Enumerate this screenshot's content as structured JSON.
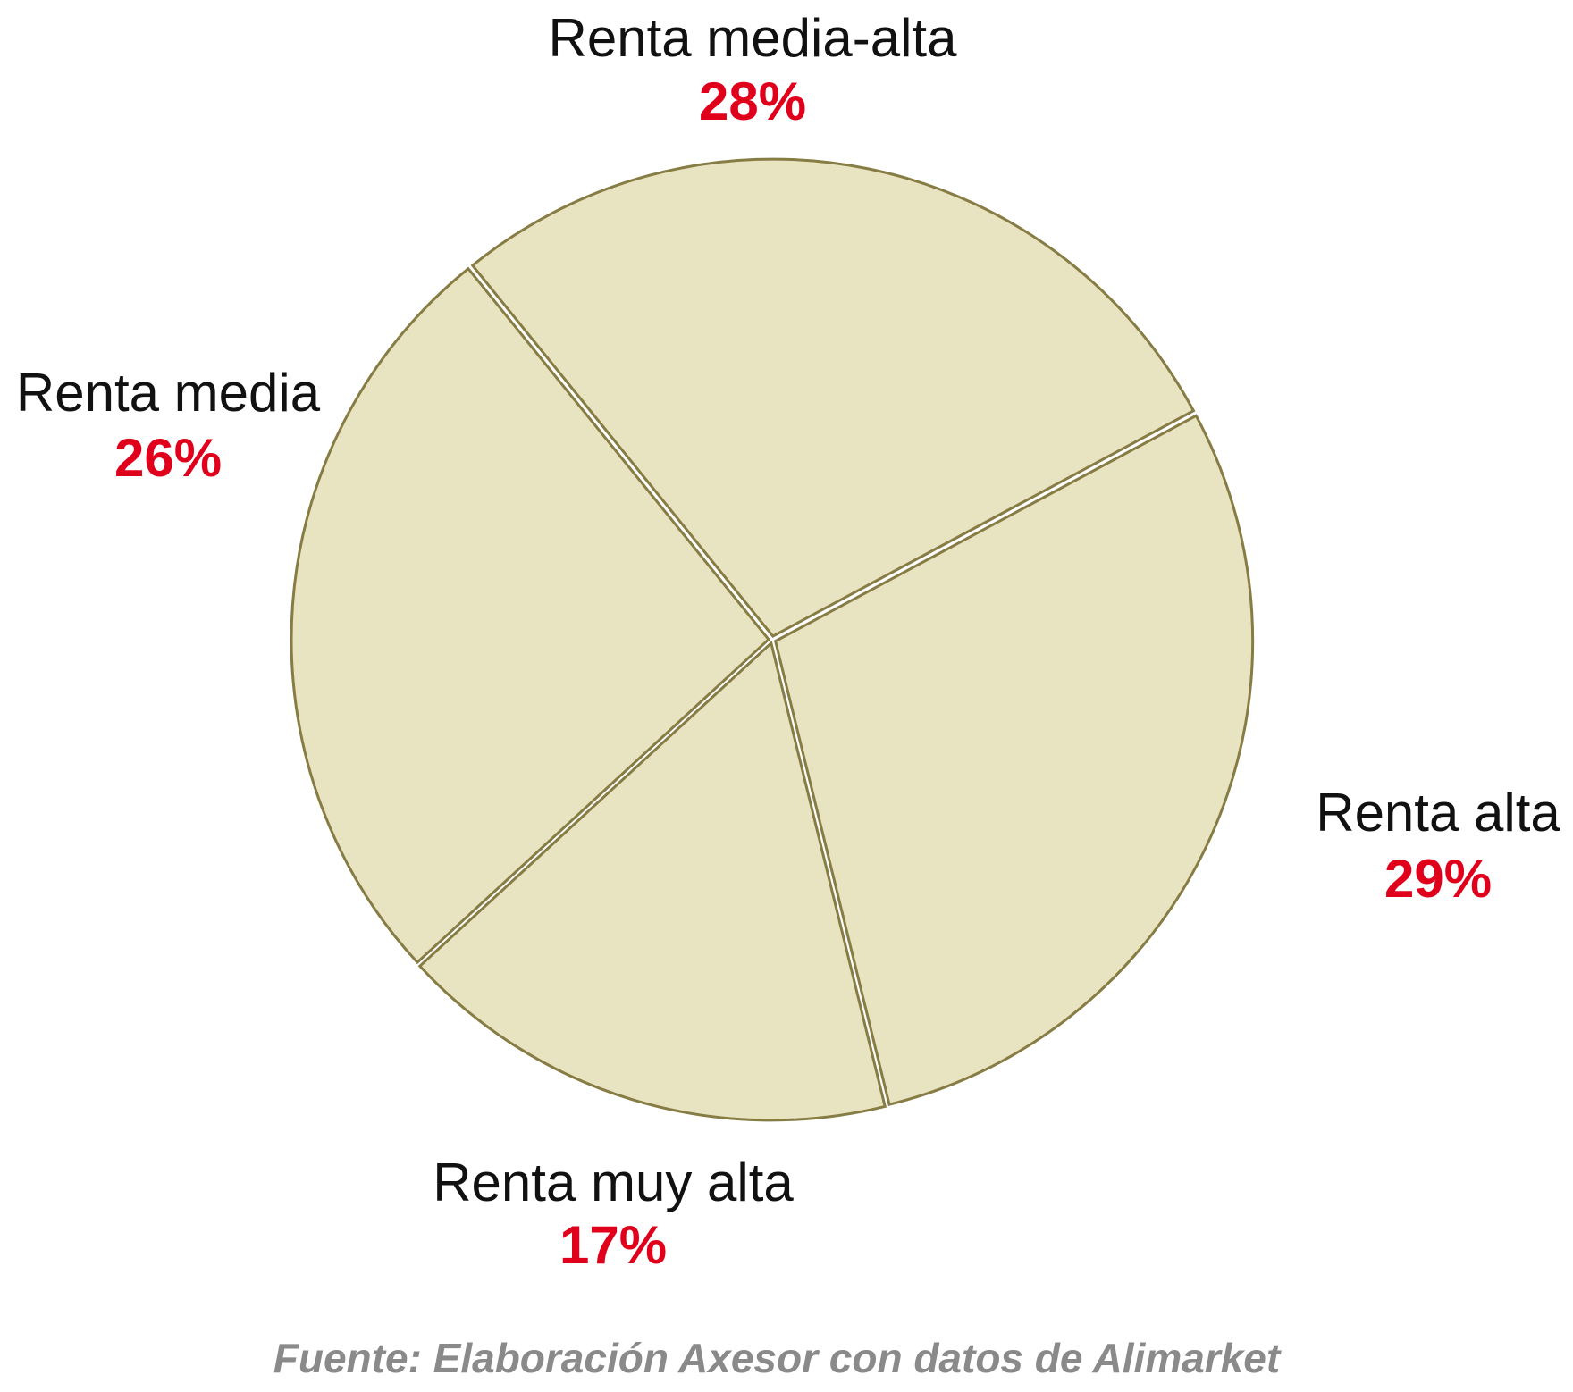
{
  "chart_data": {
    "type": "pie",
    "categories": [
      "Renta media-alta",
      "Renta alta",
      "Renta muy alta",
      "Renta media"
    ],
    "values": [
      28,
      29,
      17,
      26
    ],
    "value_labels": [
      "28%",
      "29%",
      "17%",
      "26%"
    ],
    "color": "#e8e3c0",
    "source": "Fuente: Elaboración Axesor con datos de Alimarket"
  }
}
